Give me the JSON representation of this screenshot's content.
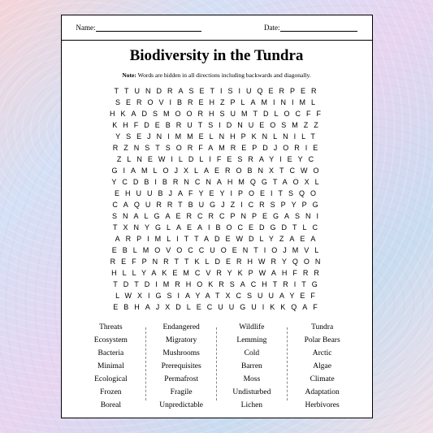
{
  "header": {
    "name_label": "Name:",
    "date_label": "Date:"
  },
  "title": "Biodiversity in the Tundra",
  "note_prefix": "Note:",
  "note_text": " Words are hidden in all directions including backwards and diagonally.",
  "grid_rows": [
    "TTUNDRASETISIUQERPER",
    "SEROVIBREHZPLAMINIML",
    "HKADSMOORHSUMTDLOCFF",
    "KHFDEBRUTSIDNUEOSMZZ",
    "YSEJNIMMELNHPKNLNILT",
    "RZNSTSORFAMREPDJORIE",
    "ZLNEWILDLIFESRAYIEYC",
    "GIAMLOJXLAEROBNXTCWO",
    "YCDBIBRNCNAHMQGTAOXL",
    "EHUUBJAFYEYIPOEITSQO",
    "CAQURRTBUGJZICRSPYPG",
    "SNALGAERCRCPNPEGASNI",
    "TXNYGLAEAIBOCEDGDTLC",
    "ARPIMLITTADEWDLYZAEA",
    "EBLMOVOCCUOENTIOJMVL",
    "REFPNRTTKLDERHWRYQON",
    "HLLYAKEMCVRYKPWAHFRR",
    "TDTDIMRHOKRSACHTRITG",
    "LWXIGSIAYATXCSUUAYEF",
    "EBHAJXDLECUUGUIKKQAF"
  ],
  "columns": [
    [
      "Threats",
      "Ecosystem",
      "Bacteria",
      "Minimal",
      "Ecological",
      "Frozen",
      "Boreal"
    ],
    [
      "Endangered",
      "Migratory",
      "Mushrooms",
      "Prerequisites",
      "Permafrost",
      "Fragile",
      "Unpredictable"
    ],
    [
      "Wildlife",
      "Lemming",
      "Cold",
      "Barren",
      "Moss",
      "Undisturbed",
      "Lichen"
    ],
    [
      "Tundra",
      "Polar Bears",
      "Arctic",
      "Algae",
      "Climate",
      "Adaptation",
      "Herbivores"
    ]
  ]
}
